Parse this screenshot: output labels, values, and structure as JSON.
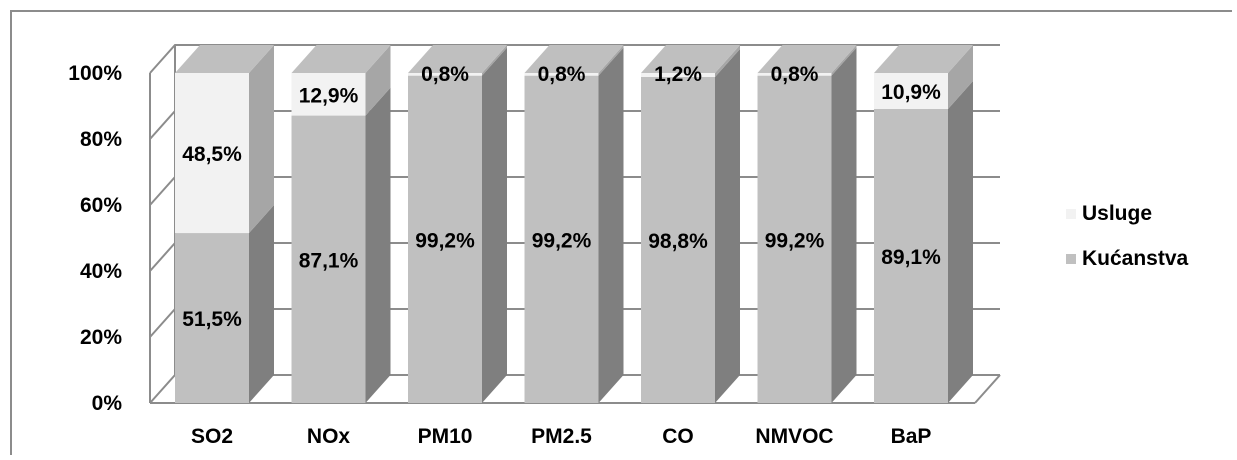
{
  "chart_data": {
    "type": "bar",
    "stacked": true,
    "percent": true,
    "categories": [
      "SO2",
      "NOx",
      "PM10",
      "PM2.5",
      "CO",
      "NMVOC",
      "BaP"
    ],
    "series": [
      {
        "name": "Kućanstva",
        "values": [
          51.5,
          87.1,
          99.2,
          99.2,
          98.8,
          99.2,
          89.1
        ],
        "labels": [
          "51,5%",
          "87,1%",
          "99,2%",
          "99,2%",
          "98,8%",
          "99,2%",
          "89,1%"
        ]
      },
      {
        "name": "Usluge",
        "values": [
          48.5,
          12.9,
          0.8,
          0.8,
          1.2,
          0.8,
          10.9
        ],
        "labels": [
          "48,5%",
          "12,9%",
          "0,8%",
          "0,8%",
          "1,2%",
          "0,8%",
          "10,9%"
        ]
      }
    ],
    "y_ticks": [
      "0%",
      "20%",
      "40%",
      "60%",
      "80%",
      "100%"
    ],
    "ylim": [
      0,
      100
    ],
    "grid": true,
    "legend_position": "right",
    "colors": {
      "Kućanstva": "#c0c0c0",
      "Usluge": "#f2f2f2"
    }
  }
}
